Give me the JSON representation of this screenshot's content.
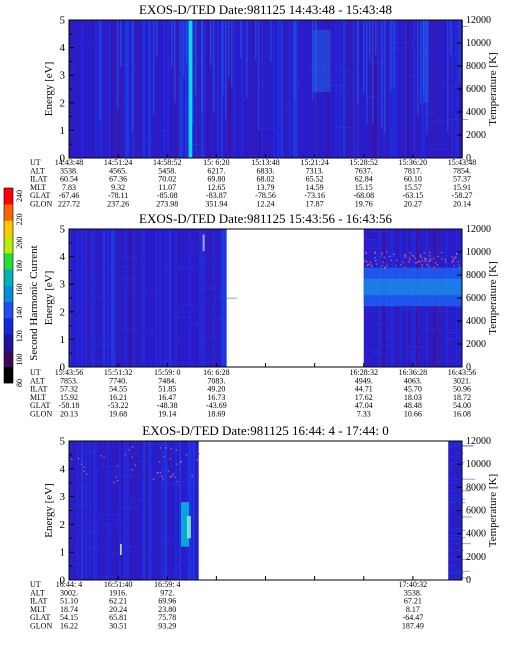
{
  "colorbar": {
    "label": "Second Harmonic Current",
    "ticks": [
      "80",
      "100",
      "120",
      "140",
      "160",
      "180",
      "200",
      "220",
      "240"
    ],
    "colors": [
      "#000000",
      "#3c0a5a",
      "#1e14a0",
      "#1428dc",
      "#1e50f0",
      "#0a8cdc",
      "#00b4b4",
      "#28dc3c",
      "#b4f000",
      "#ffc800",
      "#ff6400",
      "#ff0000"
    ]
  },
  "chart_data": [
    {
      "type": "heatmap",
      "title": "EXOS-D/TED   Date:981125  14:43:48 - 15:43:48",
      "ylabel": "Energy [eV]",
      "y2label": "Temperature [K]",
      "ylim": [
        0,
        5
      ],
      "y2lim": [
        0,
        12000
      ],
      "yticks": [
        "0",
        "1",
        "2",
        "3",
        "4",
        "5"
      ],
      "y2ticks": [
        "0",
        "2000",
        "4000",
        "6000",
        "8000",
        "10000",
        "12000"
      ],
      "coverage": [
        [
          0.0,
          1.0
        ]
      ],
      "ephemeris": {
        "labels": [
          "UT",
          "ALT",
          "ILAT",
          "MLT",
          "GLAT",
          "GLON"
        ],
        "columns": [
          {
            "at": 0.0,
            "values": [
              "14:43:48",
              "3538.",
              "60.54",
              "7.83",
              "-67.46",
              "227.72"
            ]
          },
          {
            "at": 0.125,
            "values": [
              "14:51:24",
              "4565.",
              "67.36",
              "9.32",
              "-78.11",
              "237.26"
            ]
          },
          {
            "at": 0.25,
            "values": [
              "14:58:52",
              "5458.",
              "70.02",
              "11.07",
              "-85.08",
              "273.98"
            ]
          },
          {
            "at": 0.375,
            "values": [
              "15: 6:20",
              "6217.",
              "69.80",
              "12.65",
              "-83.87",
              "351.94"
            ]
          },
          {
            "at": 0.5,
            "values": [
              "15:13:48",
              "6833.",
              "68.02",
              "13.79",
              "-78.56",
              "12.24"
            ]
          },
          {
            "at": 0.625,
            "values": [
              "15:21:24",
              "7313.",
              "65.52",
              "14.59",
              "-73.16",
              "17.87"
            ]
          },
          {
            "at": 0.75,
            "values": [
              "15:28:52",
              "7637.",
              "62.84",
              "15.15",
              "-68.08",
              "19.76"
            ]
          },
          {
            "at": 0.875,
            "values": [
              "15:36:20",
              "7817.",
              "60.10",
              "15.57",
              "-63.15",
              "20.27"
            ]
          },
          {
            "at": 1.0,
            "values": [
              "15:43:48",
              "7854.",
              "57.37",
              "15.91",
              "-58.27",
              "20.14"
            ]
          }
        ]
      }
    },
    {
      "type": "heatmap",
      "title": "EXOS-D/TED   Date:981125  15:43:56 - 16:43:56",
      "ylabel": "Energy [eV]",
      "y2label": "Temperature [K]",
      "ylim": [
        0,
        5
      ],
      "y2lim": [
        0,
        12000
      ],
      "yticks": [
        "0",
        "1",
        "2",
        "3",
        "4",
        "5"
      ],
      "y2ticks": [
        "0",
        "2000",
        "4000",
        "6000",
        "8000",
        "10000",
        "12000"
      ],
      "coverage": [
        [
          0.0,
          0.4
        ],
        [
          0.75,
          1.0
        ]
      ],
      "ephemeris": {
        "labels": [
          "UT",
          "ALT",
          "ILAT",
          "MLT",
          "GLAT",
          "GLON"
        ],
        "columns": [
          {
            "at": 0.0,
            "values": [
              "15:43:56",
              "7853.",
              "57.32",
              "15.92",
              "-58.18",
              "20.13"
            ]
          },
          {
            "at": 0.125,
            "values": [
              "15:51:32",
              "7740.",
              "54.55",
              "16.21",
              "-53.22",
              "19.68"
            ]
          },
          {
            "at": 0.25,
            "values": [
              "15:59: 0",
              "7484.",
              "51.85",
              "16.47",
              "-48.38",
              "19.14"
            ]
          },
          {
            "at": 0.375,
            "values": [
              "16: 6:28",
              "7083.",
              "49.20",
              "16.73",
              "-43.69",
              "18.69"
            ]
          },
          {
            "at": 0.75,
            "values": [
              "16:28:32",
              "4949.",
              "44.71",
              "17.62",
              "47.04",
              "7.33"
            ]
          },
          {
            "at": 0.875,
            "values": [
              "16:36:28",
              "4063.",
              "45.70",
              "18.03",
              "48.48",
              "10.66"
            ]
          },
          {
            "at": 1.0,
            "values": [
              "16:43:56",
              "3021.",
              "50.96",
              "18.72",
              "54.00",
              "16.08"
            ]
          }
        ]
      }
    },
    {
      "type": "heatmap",
      "title": "EXOS-D/TED   Date:981125  16:44: 4 - 17:44: 0",
      "ylabel": "Energy [eV]",
      "y2label": "Temperature [K]",
      "ylim": [
        0,
        5
      ],
      "y2lim": [
        0,
        12000
      ],
      "yticks": [
        "0",
        "1",
        "2",
        "3",
        "4",
        "5"
      ],
      "y2ticks": [
        "0",
        "2000",
        "4000",
        "6000",
        "8000",
        "10000",
        "12000"
      ],
      "coverage": [
        [
          0.0,
          0.33
        ],
        [
          0.965,
          1.0
        ]
      ],
      "ephemeris": {
        "labels": [
          "UT",
          "ALT",
          "ILAT",
          "MLT",
          "GLAT",
          "GLON"
        ],
        "columns": [
          {
            "at": 0.0,
            "values": [
              "16:44: 4",
              "3002.",
              "51.10",
              "18.74",
              "54.15",
              "16.22"
            ]
          },
          {
            "at": 0.125,
            "values": [
              "16:51:40",
              "1916.",
              "62.21",
              "20.24",
              "65.81",
              "30.51"
            ]
          },
          {
            "at": 0.25,
            "values": [
              "16:59: 4",
              "972.",
              "69.96",
              "23.80",
              "75.78",
              "93.29"
            ]
          },
          {
            "at": 0.875,
            "values": [
              "17:40:32",
              "3538.",
              "67.21",
              "8.17",
              "-64.47",
              "187.49"
            ]
          }
        ]
      }
    }
  ]
}
